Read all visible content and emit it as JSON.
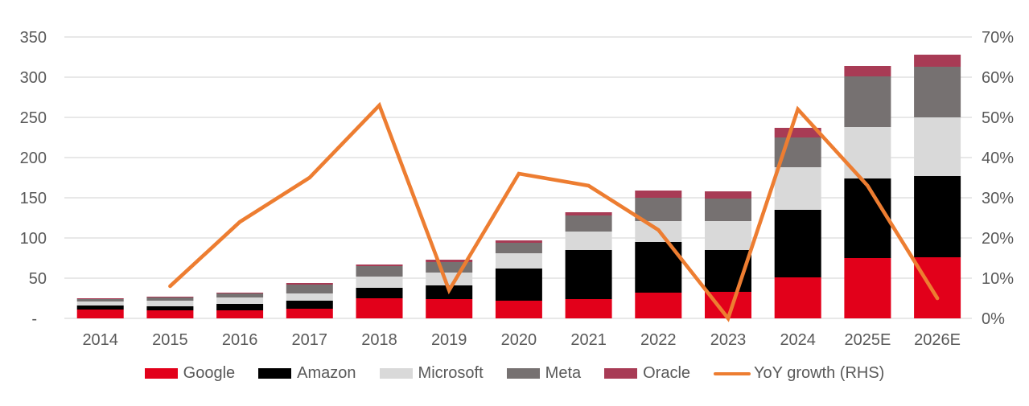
{
  "chart_data": {
    "type": "bar",
    "variant": "stacked-with-line-overlay",
    "categories": [
      "2014",
      "2015",
      "2016",
      "2017",
      "2018",
      "2019",
      "2020",
      "2021",
      "2022",
      "2023",
      "2024",
      "2025E",
      "2026E"
    ],
    "series": [
      {
        "name": "Google",
        "color": "#E2001A",
        "values": [
          11,
          10,
          10,
          12,
          25,
          24,
          22,
          24,
          32,
          33,
          51,
          75,
          76
        ]
      },
      {
        "name": "Amazon",
        "color": "#000000",
        "values": [
          5,
          5,
          8,
          10,
          13,
          17,
          40,
          61,
          63,
          52,
          84,
          99,
          101
        ]
      },
      {
        "name": "Microsoft",
        "color": "#D9D9D9",
        "values": [
          5,
          7,
          8,
          9,
          14,
          16,
          19,
          23,
          26,
          36,
          53,
          64,
          73
        ]
      },
      {
        "name": "Meta",
        "color": "#767171",
        "values": [
          3,
          4,
          5,
          11,
          13,
          13,
          13,
          20,
          29,
          28,
          37,
          63,
          63
        ]
      },
      {
        "name": "Oracle",
        "color": "#A83B55",
        "values": [
          1,
          1,
          1,
          2,
          2,
          3,
          3,
          4,
          9,
          9,
          12,
          13,
          15
        ]
      }
    ],
    "line_series": {
      "name": "YoY growth (RHS)",
      "color": "#ED7D31",
      "axis": "right",
      "values": [
        null,
        8,
        24,
        35,
        53,
        7,
        36,
        33,
        22,
        0,
        52,
        33,
        5
      ]
    },
    "left_axis": {
      "min": 0,
      "max": 350,
      "tick_labels": [
        "-",
        "50",
        "100",
        "150",
        "200",
        "250",
        "300",
        "350"
      ]
    },
    "right_axis": {
      "min": 0,
      "max": 70,
      "tick_labels": [
        "0%",
        "10%",
        "20%",
        "30%",
        "40%",
        "50%",
        "60%",
        "70%"
      ]
    },
    "grid": true,
    "legend_position": "bottom",
    "colors": {
      "gridline": "#D9D9D9",
      "axis_text": "#595959",
      "background": "#FFFFFF"
    }
  }
}
